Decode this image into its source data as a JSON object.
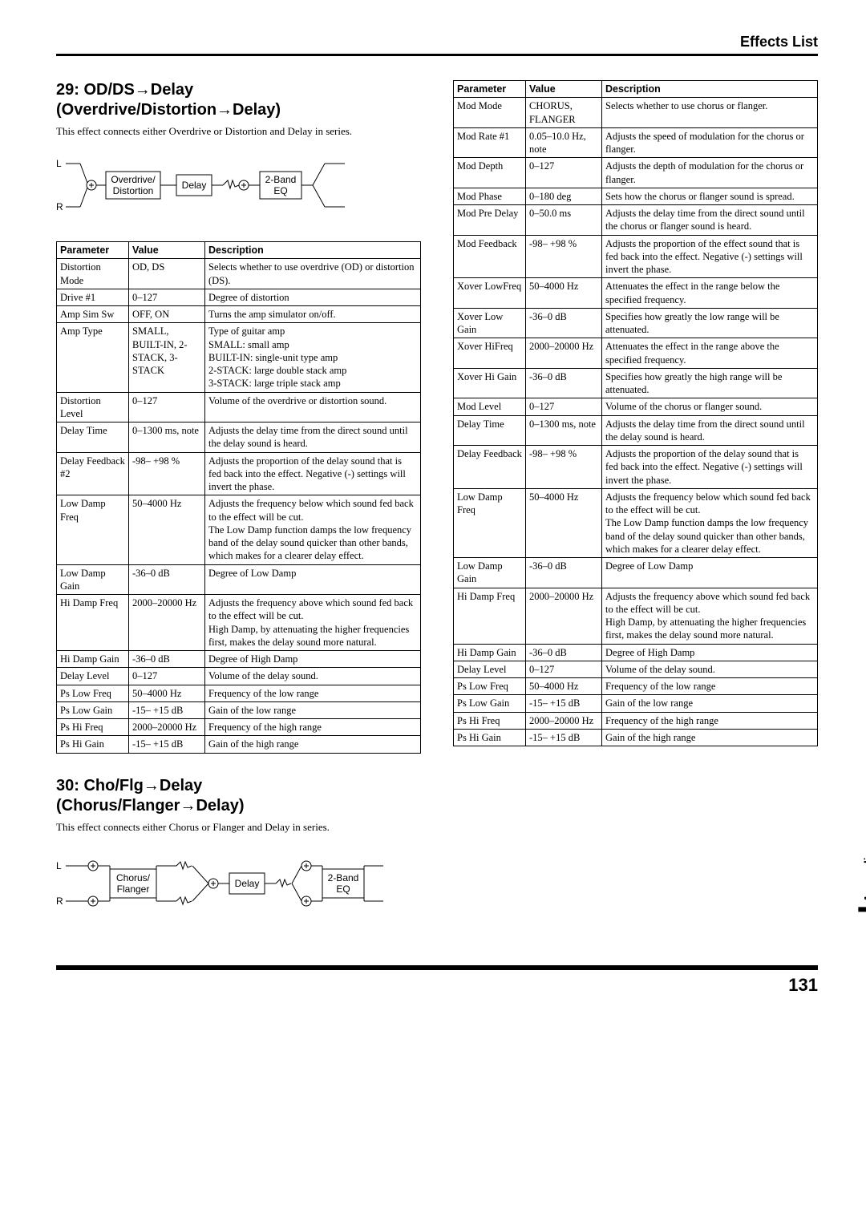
{
  "header": {
    "title": "Effects List"
  },
  "section29": {
    "title_line1": "29: OD/DS→Delay",
    "title_line2": "(Overdrive/Distortion→Delay)",
    "intro": "This effect connects either Overdrive or Distortion and Delay in series.",
    "diagram": {
      "L": "L",
      "R": "R",
      "b1": "Overdrive/\nDistortion",
      "b2": "Delay",
      "b3": "2-Band\nEQ"
    },
    "headers": {
      "p": "Parameter",
      "v": "Value",
      "d": "Description"
    },
    "rows": [
      {
        "p": "Distortion Mode",
        "v": "OD, DS",
        "d": "Selects whether to use overdrive (OD) or distortion (DS)."
      },
      {
        "p": "Drive #1",
        "v": "0–127",
        "d": "Degree of distortion"
      },
      {
        "p": "Amp Sim Sw",
        "v": "OFF, ON",
        "d": "Turns the amp simulator on/off."
      },
      {
        "p": "Amp Type",
        "v": "SMALL, BUILT-IN, 2-STACK, 3-STACK",
        "d": "Type of guitar amp\nSMALL: small amp\nBUILT-IN: single-unit type amp\n2-STACK: large double stack amp\n3-STACK: large triple stack amp"
      },
      {
        "p": "Distortion Level",
        "v": "0–127",
        "d": "Volume of the overdrive or distortion sound."
      },
      {
        "p": "Delay Time",
        "v": "0–1300 ms, note",
        "d": "Adjusts the delay time from the direct sound until the delay sound is heard."
      },
      {
        "p": "Delay Feedback #2",
        "v": "-98– +98 %",
        "d": "Adjusts the proportion of the delay sound that is fed back into the effect. Negative (-) settings will invert the phase."
      },
      {
        "p": "Low Damp Freq",
        "v": "50–4000 Hz",
        "d": "Adjusts the frequency below which sound fed back to the effect will be cut.\nThe Low Damp function damps the low frequency band of the delay sound quicker than other bands, which makes for a clearer delay effect."
      },
      {
        "p": "Low Damp Gain",
        "v": "-36–0 dB",
        "d": "Degree of Low Damp"
      },
      {
        "p": "Hi Damp Freq",
        "v": "2000–20000 Hz",
        "d": "Adjusts the frequency above which sound fed back to the effect will be cut.\nHigh Damp, by attenuating the higher frequencies first, makes the delay sound more natural."
      },
      {
        "p": "Hi Damp Gain",
        "v": "-36–0 dB",
        "d": "Degree of High Damp"
      },
      {
        "p": "Delay Level",
        "v": "0–127",
        "d": "Volume of the delay sound."
      },
      {
        "p": "Ps Low Freq",
        "v": "50–4000 Hz",
        "d": "Frequency of the low range"
      },
      {
        "p": "Ps Low Gain",
        "v": "-15– +15 dB",
        "d": "Gain of the low range"
      },
      {
        "p": "Ps Hi Freq",
        "v": "2000–20000 Hz",
        "d": "Frequency of the high range"
      },
      {
        "p": "Ps Hi Gain",
        "v": "-15– +15 dB",
        "d": "Gain of the high range"
      }
    ]
  },
  "section30": {
    "title_line1": "30: Cho/Flg→Delay",
    "title_line2": "(Chorus/Flanger→Delay)",
    "intro": "This effect connects either Chorus or Flanger and Delay in series.",
    "diagram": {
      "L": "L",
      "R": "R",
      "b1": "Chorus/\nFlanger",
      "b2": "Delay",
      "b3": "2-Band\nEQ"
    },
    "headers": {
      "p": "Parameter",
      "v": "Value",
      "d": "Description"
    },
    "rows": [
      {
        "p": "Mod Mode",
        "v": "CHORUS, FLANGER",
        "d": "Selects whether to use chorus or flanger."
      },
      {
        "p": "Mod Rate #1",
        "v": "0.05–10.0 Hz, note",
        "d": "Adjusts the speed of modulation for the chorus or flanger."
      },
      {
        "p": "Mod Depth",
        "v": "0–127",
        "d": "Adjusts the depth of modulation for the chorus or flanger."
      },
      {
        "p": "Mod Phase",
        "v": "0–180 deg",
        "d": "Sets how the chorus or flanger sound is spread."
      },
      {
        "p": "Mod Pre Delay",
        "v": "0–50.0 ms",
        "d": "Adjusts the delay time from the direct sound until the chorus or flanger sound is heard."
      },
      {
        "p": "Mod Feedback",
        "v": "-98– +98 %",
        "d": "Adjusts the proportion of the effect sound that is fed back into the effect. Negative (-) settings will invert the phase."
      },
      {
        "p": "Xover LowFreq",
        "v": "50–4000 Hz",
        "d": "Attenuates the effect in the range below the specified frequency."
      },
      {
        "p": "Xover Low Gain",
        "v": "-36–0 dB",
        "d": "Specifies how greatly the low range will be attenuated."
      },
      {
        "p": "Xover HiFreq",
        "v": "2000–20000 Hz",
        "d": "Attenuates the effect in the range above the specified frequency."
      },
      {
        "p": "Xover Hi Gain",
        "v": "-36–0 dB",
        "d": "Specifies how greatly the high range will be attenuated."
      },
      {
        "p": "Mod Level",
        "v": "0–127",
        "d": "Volume of the chorus or flanger sound."
      },
      {
        "p": "Delay Time",
        "v": "0–1300 ms, note",
        "d": "Adjusts the delay time from the direct sound until the delay sound is heard."
      },
      {
        "p": "Delay Feedback",
        "v": "-98– +98 %",
        "d": "Adjusts the proportion of the delay sound that is fed back into the effect. Negative (-) settings will invert the phase."
      },
      {
        "p": "Low Damp Freq",
        "v": "50–4000 Hz",
        "d": "Adjusts the frequency below which sound fed back to the effect will be cut.\nThe Low Damp function damps the low frequency band of the delay sound quicker than other bands, which makes for a clearer delay effect."
      },
      {
        "p": "Low Damp Gain",
        "v": "-36–0 dB",
        "d": "Degree of Low Damp"
      },
      {
        "p": "Hi Damp Freq",
        "v": "2000–20000 Hz",
        "d": "Adjusts the frequency above which sound fed back to the effect will be cut.\nHigh Damp, by attenuating the higher frequencies first, makes the delay sound more natural."
      },
      {
        "p": "Hi Damp Gain",
        "v": "-36–0 dB",
        "d": "Degree of High Damp"
      },
      {
        "p": "Delay Level",
        "v": "0–127",
        "d": "Volume of the delay sound."
      },
      {
        "p": "Ps Low Freq",
        "v": "50–4000 Hz",
        "d": "Frequency of the low range"
      },
      {
        "p": "Ps Low Gain",
        "v": "-15– +15 dB",
        "d": "Gain of the low range"
      },
      {
        "p": "Ps Hi Freq",
        "v": "2000–20000 Hz",
        "d": "Frequency of the high range"
      },
      {
        "p": "Ps Hi Gain",
        "v": "-15– +15 dB",
        "d": "Gain of the high range"
      }
    ]
  },
  "footer": {
    "page": "131",
    "tab": "Appendices"
  }
}
